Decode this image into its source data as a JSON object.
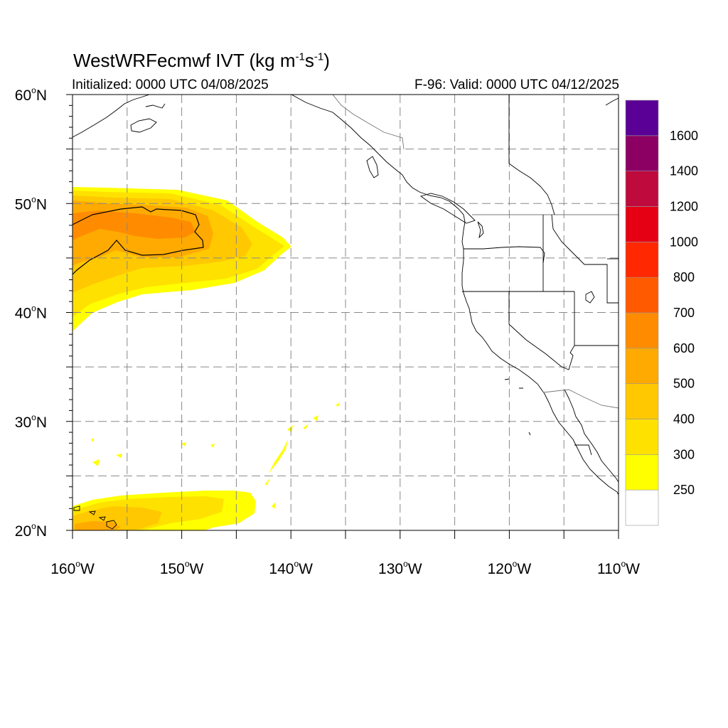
{
  "title": {
    "prefix": "WestWRFecmwf IVT (kg m",
    "sup1": "-1",
    "mid": "s",
    "sup2": "-1",
    "suffix": ")"
  },
  "initialized": "Initialized: 0000 UTC 04/08/2025",
  "valid": "F-96: Valid: 0000 UTC 04/12/2025",
  "map": {
    "lon_range": [
      -160,
      -110
    ],
    "lat_range": [
      20,
      60
    ],
    "lon_ticks": [
      {
        "value": -160,
        "deg": "160",
        "hem": "W"
      },
      {
        "value": -150,
        "deg": "150",
        "hem": "W"
      },
      {
        "value": -140,
        "deg": "140",
        "hem": "W"
      },
      {
        "value": -130,
        "deg": "130",
        "hem": "W"
      },
      {
        "value": -120,
        "deg": "120",
        "hem": "W"
      },
      {
        "value": -110,
        "deg": "110",
        "hem": "W"
      }
    ],
    "lat_ticks": [
      {
        "value": 60,
        "deg": "60",
        "hem": "N"
      },
      {
        "value": 50,
        "deg": "50",
        "hem": "N"
      },
      {
        "value": 40,
        "deg": "40",
        "hem": "N"
      },
      {
        "value": 30,
        "deg": "30",
        "hem": "N"
      },
      {
        "value": 20,
        "deg": "20",
        "hem": "N"
      }
    ],
    "gridline_lons": [
      -155,
      -150,
      -145,
      -140,
      -135,
      -130,
      -125,
      -120,
      -115
    ],
    "gridline_lats": [
      55,
      50,
      45,
      40,
      35,
      30,
      25
    ],
    "grid_visible": true,
    "minor_tick_step_deg": 1
  },
  "colorbar": {
    "placement": "right",
    "levels": [
      "250",
      "300",
      "400",
      "500",
      "600",
      "700",
      "800",
      "1000",
      "1200",
      "1400",
      "1600"
    ],
    "colors": [
      "#ffffff",
      "#ffff00",
      "#ffe100",
      "#ffc800",
      "#ffaa00",
      "#ff8c00",
      "#ff5a00",
      "#ff2800",
      "#e60014",
      "#be0a3c",
      "#8c0064",
      "#5a0096"
    ]
  },
  "ivt_fields": {
    "contour_line_value": 500,
    "regions": [
      {
        "name": "north-pacific-atmospheric-river",
        "lon_range": [
          -160,
          -140
        ],
        "lat_range": [
          38.5,
          51.5
        ],
        "peak_band": "600-700",
        "outer_band": "250-300"
      },
      {
        "name": "subtropical-moisture-plume",
        "lon_range": [
          -160,
          -144
        ],
        "lat_range": [
          20,
          23.5
        ],
        "peak_band": "400-500",
        "outer_band": "250-300"
      }
    ]
  },
  "colors": {
    "gridline": "#888888",
    "coast": "#000000",
    "border": "#000000"
  }
}
